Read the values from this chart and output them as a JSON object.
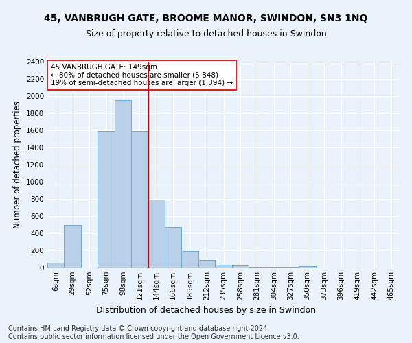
{
  "title": "45, VANBRUGH GATE, BROOME MANOR, SWINDON, SN3 1NQ",
  "subtitle": "Size of property relative to detached houses in Swindon",
  "xlabel": "Distribution of detached houses by size in Swindon",
  "ylabel": "Number of detached properties",
  "bar_labels": [
    "6sqm",
    "29sqm",
    "52sqm",
    "75sqm",
    "98sqm",
    "121sqm",
    "144sqm",
    "166sqm",
    "189sqm",
    "212sqm",
    "235sqm",
    "258sqm",
    "281sqm",
    "304sqm",
    "327sqm",
    "350sqm",
    "373sqm",
    "396sqm",
    "419sqm",
    "442sqm",
    "465sqm"
  ],
  "bar_values": [
    60,
    500,
    0,
    1590,
    1950,
    1590,
    790,
    470,
    195,
    90,
    35,
    25,
    5,
    5,
    5,
    20,
    0,
    0,
    0,
    0,
    0
  ],
  "bar_color": "#b8d0e8",
  "bar_edge_color": "#6aaad4",
  "vline_index": 6,
  "vline_color": "#cc0000",
  "annotation_text": "45 VANBRUGH GATE: 149sqm\n← 80% of detached houses are smaller (5,848)\n19% of semi-detached houses are larger (1,394) →",
  "annotation_box_color": "#ffffff",
  "annotation_box_edge": "#cc0000",
  "ylim": [
    0,
    2400
  ],
  "yticks": [
    0,
    200,
    400,
    600,
    800,
    1000,
    1200,
    1400,
    1600,
    1800,
    2000,
    2200,
    2400
  ],
  "background_color": "#eaf2fb",
  "plot_bg_color": "#eaf2fb",
  "grid_color": "#ffffff",
  "footer1": "Contains HM Land Registry data © Crown copyright and database right 2024.",
  "footer2": "Contains public sector information licensed under the Open Government Licence v3.0.",
  "title_fontsize": 10,
  "subtitle_fontsize": 9,
  "xlabel_fontsize": 9,
  "ylabel_fontsize": 8.5,
  "tick_fontsize": 7.5,
  "footer_fontsize": 7
}
